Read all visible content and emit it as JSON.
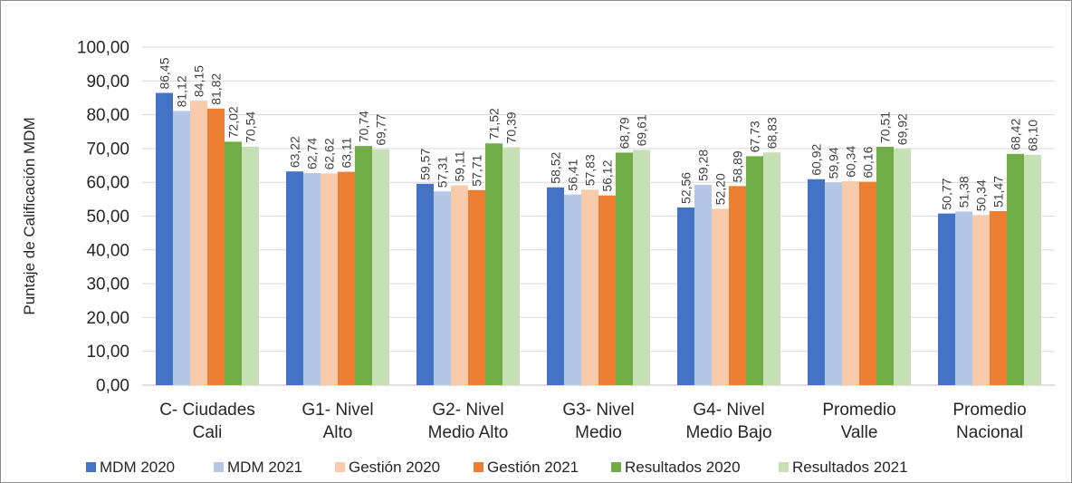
{
  "chart_data": {
    "type": "bar",
    "ylabel": "Puntaje de Calificación MDM",
    "ylim": [
      0,
      100
    ],
    "ystep": 10,
    "ytick_labels": [
      "0,00",
      "10,00",
      "20,00",
      "30,00",
      "40,00",
      "50,00",
      "60,00",
      "70,00",
      "80,00",
      "90,00",
      "100,00"
    ],
    "grid": true,
    "legend_position": "bottom",
    "categories": [
      [
        "C- Ciudades",
        "Cali"
      ],
      [
        "G1- Nivel",
        "Alto"
      ],
      [
        "G2- Nivel",
        "Medio Alto"
      ],
      [
        "G3- Nivel",
        "Medio"
      ],
      [
        "G4- Nivel",
        "Medio Bajo"
      ],
      [
        "Promedio",
        "Valle"
      ],
      [
        "Promedio",
        "Nacional"
      ]
    ],
    "series": [
      {
        "name": "MDM 2020",
        "color": "#4472c4",
        "values": [
          86.45,
          63.22,
          59.57,
          58.52,
          52.56,
          60.92,
          50.77
        ],
        "labels": [
          "86,45",
          "63,22",
          "59,57",
          "58,52",
          "52,56",
          "60,92",
          "50,77"
        ]
      },
      {
        "name": "MDM 2021",
        "color": "#b4c7e7",
        "values": [
          81.12,
          62.74,
          57.31,
          56.41,
          59.28,
          59.94,
          51.38
        ],
        "labels": [
          "81,12",
          "62,74",
          "57,31",
          "56,41",
          "59,28",
          "59,94",
          "51,38"
        ]
      },
      {
        "name": "Gestión 2020",
        "color": "#f8cbad",
        "values": [
          84.15,
          62.62,
          59.11,
          57.83,
          52.2,
          60.34,
          50.34
        ],
        "labels": [
          "84,15",
          "62,62",
          "59,11",
          "57,83",
          "52,20",
          "60,34",
          "50,34"
        ]
      },
      {
        "name": "Gestión 2021",
        "color": "#ed7d31",
        "values": [
          81.82,
          63.11,
          57.71,
          56.12,
          58.89,
          60.16,
          51.47
        ],
        "labels": [
          "81,82",
          "63,11",
          "57,71",
          "56,12",
          "58,89",
          "60,16",
          "51,47"
        ]
      },
      {
        "name": "Resultados 2020",
        "color": "#70ad47",
        "values": [
          72.02,
          70.74,
          71.52,
          68.79,
          67.73,
          70.51,
          68.42
        ],
        "labels": [
          "72,02",
          "70,74",
          "71,52",
          "68,79",
          "67,73",
          "70,51",
          "68,42"
        ]
      },
      {
        "name": "Resultados 2021",
        "color": "#c5e0b4",
        "values": [
          70.54,
          69.77,
          70.39,
          69.61,
          68.83,
          69.92,
          68.1
        ],
        "labels": [
          "70,54",
          "69,77",
          "70,39",
          "69,61",
          "68,83",
          "69,92",
          "68,10"
        ]
      }
    ]
  }
}
